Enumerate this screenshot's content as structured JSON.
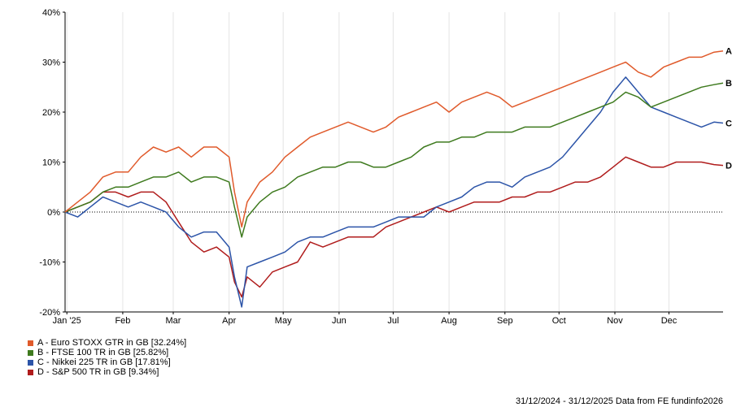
{
  "chart_data": {
    "type": "line",
    "title": "",
    "xlabel": "",
    "ylabel": "",
    "ylim": [
      -20,
      40
    ],
    "y_ticks": [
      -20,
      -10,
      0,
      10,
      20,
      30,
      40
    ],
    "y_tick_labels": [
      "-20%",
      "-10%",
      "0%",
      "10%",
      "20%",
      "30%",
      "40%"
    ],
    "x_range": [
      "2024-12-31",
      "2025-12-31"
    ],
    "x_ticks": [
      {
        "date": "2025-01-01",
        "label": "Jan '25"
      },
      {
        "date": "2025-02-01",
        "label": "Feb"
      },
      {
        "date": "2025-03-01",
        "label": "Mar"
      },
      {
        "date": "2025-04-01",
        "label": "Apr"
      },
      {
        "date": "2025-05-01",
        "label": "May"
      },
      {
        "date": "2025-06-01",
        "label": "Jun"
      },
      {
        "date": "2025-07-01",
        "label": "Jul"
      },
      {
        "date": "2025-08-01",
        "label": "Aug"
      },
      {
        "date": "2025-09-01",
        "label": "Sep"
      },
      {
        "date": "2025-10-01",
        "label": "Oct"
      },
      {
        "date": "2025-11-01",
        "label": "Nov"
      },
      {
        "date": "2025-12-01",
        "label": "Dec"
      }
    ],
    "grid": "vertical",
    "zero_line": true,
    "legend_position": "bottom-left",
    "series": [
      {
        "key": "A",
        "name": "A - Euro STOXX GTR in GB [32.24%]",
        "color": "#e05a2b",
        "points": [
          [
            "2024-12-31",
            0
          ],
          [
            "2025-01-07",
            2
          ],
          [
            "2025-01-14",
            4
          ],
          [
            "2025-01-21",
            7
          ],
          [
            "2025-01-28",
            8
          ],
          [
            "2025-02-04",
            8
          ],
          [
            "2025-02-11",
            11
          ],
          [
            "2025-02-18",
            13
          ],
          [
            "2025-02-25",
            12
          ],
          [
            "2025-03-04",
            13
          ],
          [
            "2025-03-11",
            11
          ],
          [
            "2025-03-18",
            13
          ],
          [
            "2025-03-25",
            13
          ],
          [
            "2025-04-01",
            11
          ],
          [
            "2025-04-04",
            4
          ],
          [
            "2025-04-08",
            -3
          ],
          [
            "2025-04-11",
            2
          ],
          [
            "2025-04-18",
            6
          ],
          [
            "2025-04-25",
            8
          ],
          [
            "2025-05-02",
            11
          ],
          [
            "2025-05-09",
            13
          ],
          [
            "2025-05-16",
            15
          ],
          [
            "2025-05-23",
            16
          ],
          [
            "2025-05-30",
            17
          ],
          [
            "2025-06-06",
            18
          ],
          [
            "2025-06-13",
            17
          ],
          [
            "2025-06-20",
            16
          ],
          [
            "2025-06-27",
            17
          ],
          [
            "2025-07-04",
            19
          ],
          [
            "2025-07-11",
            20
          ],
          [
            "2025-07-18",
            21
          ],
          [
            "2025-07-25",
            22
          ],
          [
            "2025-08-01",
            20
          ],
          [
            "2025-08-08",
            22
          ],
          [
            "2025-08-15",
            23
          ],
          [
            "2025-08-22",
            24
          ],
          [
            "2025-08-29",
            23
          ],
          [
            "2025-09-05",
            21
          ],
          [
            "2025-09-12",
            22
          ],
          [
            "2025-09-19",
            23
          ],
          [
            "2025-09-26",
            24
          ],
          [
            "2025-10-03",
            25
          ],
          [
            "2025-10-10",
            26
          ],
          [
            "2025-10-17",
            27
          ],
          [
            "2025-10-24",
            28
          ],
          [
            "2025-10-31",
            29
          ],
          [
            "2025-11-07",
            30
          ],
          [
            "2025-11-14",
            28
          ],
          [
            "2025-11-21",
            27
          ],
          [
            "2025-11-28",
            29
          ],
          [
            "2025-12-05",
            30
          ],
          [
            "2025-12-12",
            31
          ],
          [
            "2025-12-19",
            31
          ],
          [
            "2025-12-26",
            32
          ],
          [
            "2025-12-31",
            32.24
          ]
        ]
      },
      {
        "key": "B",
        "name": "B - FTSE 100 TR in GB [25.82%]",
        "color": "#3e7a1e",
        "points": [
          [
            "2024-12-31",
            0
          ],
          [
            "2025-01-07",
            1
          ],
          [
            "2025-01-14",
            2
          ],
          [
            "2025-01-21",
            4
          ],
          [
            "2025-01-28",
            5
          ],
          [
            "2025-02-04",
            5
          ],
          [
            "2025-02-11",
            6
          ],
          [
            "2025-02-18",
            7
          ],
          [
            "2025-02-25",
            7
          ],
          [
            "2025-03-04",
            8
          ],
          [
            "2025-03-11",
            6
          ],
          [
            "2025-03-18",
            7
          ],
          [
            "2025-03-25",
            7
          ],
          [
            "2025-04-01",
            6
          ],
          [
            "2025-04-04",
            1
          ],
          [
            "2025-04-08",
            -5
          ],
          [
            "2025-04-11",
            -1
          ],
          [
            "2025-04-18",
            2
          ],
          [
            "2025-04-25",
            4
          ],
          [
            "2025-05-02",
            5
          ],
          [
            "2025-05-09",
            7
          ],
          [
            "2025-05-16",
            8
          ],
          [
            "2025-05-23",
            9
          ],
          [
            "2025-05-30",
            9
          ],
          [
            "2025-06-06",
            10
          ],
          [
            "2025-06-13",
            10
          ],
          [
            "2025-06-20",
            9
          ],
          [
            "2025-06-27",
            9
          ],
          [
            "2025-07-04",
            10
          ],
          [
            "2025-07-11",
            11
          ],
          [
            "2025-07-18",
            13
          ],
          [
            "2025-07-25",
            14
          ],
          [
            "2025-08-01",
            14
          ],
          [
            "2025-08-08",
            15
          ],
          [
            "2025-08-15",
            15
          ],
          [
            "2025-08-22",
            16
          ],
          [
            "2025-08-29",
            16
          ],
          [
            "2025-09-05",
            16
          ],
          [
            "2025-09-12",
            17
          ],
          [
            "2025-09-19",
            17
          ],
          [
            "2025-09-26",
            17
          ],
          [
            "2025-10-03",
            18
          ],
          [
            "2025-10-10",
            19
          ],
          [
            "2025-10-17",
            20
          ],
          [
            "2025-10-24",
            21
          ],
          [
            "2025-10-31",
            22
          ],
          [
            "2025-11-07",
            24
          ],
          [
            "2025-11-14",
            23
          ],
          [
            "2025-11-21",
            21
          ],
          [
            "2025-11-28",
            22
          ],
          [
            "2025-12-05",
            23
          ],
          [
            "2025-12-12",
            24
          ],
          [
            "2025-12-19",
            25
          ],
          [
            "2025-12-26",
            25.5
          ],
          [
            "2025-12-31",
            25.82
          ]
        ]
      },
      {
        "key": "C",
        "name": "C - Nikkei 225 TR in GB [17.81%]",
        "color": "#2c54a8",
        "points": [
          [
            "2024-12-31",
            0
          ],
          [
            "2025-01-07",
            -1
          ],
          [
            "2025-01-14",
            1
          ],
          [
            "2025-01-21",
            3
          ],
          [
            "2025-01-28",
            2
          ],
          [
            "2025-02-04",
            1
          ],
          [
            "2025-02-11",
            2
          ],
          [
            "2025-02-18",
            1
          ],
          [
            "2025-02-25",
            0
          ],
          [
            "2025-03-04",
            -3
          ],
          [
            "2025-03-11",
            -5
          ],
          [
            "2025-03-18",
            -4
          ],
          [
            "2025-03-25",
            -4
          ],
          [
            "2025-04-01",
            -7
          ],
          [
            "2025-04-04",
            -13
          ],
          [
            "2025-04-08",
            -19
          ],
          [
            "2025-04-11",
            -11
          ],
          [
            "2025-04-18",
            -10
          ],
          [
            "2025-04-25",
            -9
          ],
          [
            "2025-05-02",
            -8
          ],
          [
            "2025-05-09",
            -6
          ],
          [
            "2025-05-16",
            -5
          ],
          [
            "2025-05-23",
            -5
          ],
          [
            "2025-05-30",
            -4
          ],
          [
            "2025-06-06",
            -3
          ],
          [
            "2025-06-13",
            -3
          ],
          [
            "2025-06-20",
            -3
          ],
          [
            "2025-06-27",
            -2
          ],
          [
            "2025-07-04",
            -1
          ],
          [
            "2025-07-11",
            -1
          ],
          [
            "2025-07-18",
            -1
          ],
          [
            "2025-07-25",
            1
          ],
          [
            "2025-08-01",
            2
          ],
          [
            "2025-08-08",
            3
          ],
          [
            "2025-08-15",
            5
          ],
          [
            "2025-08-22",
            6
          ],
          [
            "2025-08-29",
            6
          ],
          [
            "2025-09-05",
            5
          ],
          [
            "2025-09-12",
            7
          ],
          [
            "2025-09-19",
            8
          ],
          [
            "2025-09-26",
            9
          ],
          [
            "2025-10-03",
            11
          ],
          [
            "2025-10-10",
            14
          ],
          [
            "2025-10-17",
            17
          ],
          [
            "2025-10-24",
            20
          ],
          [
            "2025-10-31",
            24
          ],
          [
            "2025-11-07",
            27
          ],
          [
            "2025-11-14",
            24
          ],
          [
            "2025-11-21",
            21
          ],
          [
            "2025-11-28",
            20
          ],
          [
            "2025-12-05",
            19
          ],
          [
            "2025-12-12",
            18
          ],
          [
            "2025-12-19",
            17
          ],
          [
            "2025-12-26",
            18
          ],
          [
            "2025-12-31",
            17.81
          ]
        ]
      },
      {
        "key": "D",
        "name": "D - S&P 500 TR in GB [9.34%]",
        "color": "#b01c1c",
        "points": [
          [
            "2024-12-31",
            0
          ],
          [
            "2025-01-07",
            1
          ],
          [
            "2025-01-14",
            2
          ],
          [
            "2025-01-21",
            4
          ],
          [
            "2025-01-28",
            4
          ],
          [
            "2025-02-04",
            3
          ],
          [
            "2025-02-11",
            4
          ],
          [
            "2025-02-18",
            4
          ],
          [
            "2025-02-25",
            2
          ],
          [
            "2025-03-04",
            -2
          ],
          [
            "2025-03-11",
            -6
          ],
          [
            "2025-03-18",
            -8
          ],
          [
            "2025-03-25",
            -7
          ],
          [
            "2025-04-01",
            -9
          ],
          [
            "2025-04-04",
            -14
          ],
          [
            "2025-04-08",
            -17
          ],
          [
            "2025-04-11",
            -13
          ],
          [
            "2025-04-18",
            -15
          ],
          [
            "2025-04-25",
            -12
          ],
          [
            "2025-05-02",
            -11
          ],
          [
            "2025-05-09",
            -10
          ],
          [
            "2025-05-16",
            -6
          ],
          [
            "2025-05-23",
            -7
          ],
          [
            "2025-05-30",
            -6
          ],
          [
            "2025-06-06",
            -5
          ],
          [
            "2025-06-13",
            -5
          ],
          [
            "2025-06-20",
            -5
          ],
          [
            "2025-06-27",
            -3
          ],
          [
            "2025-07-04",
            -2
          ],
          [
            "2025-07-11",
            -1
          ],
          [
            "2025-07-18",
            0
          ],
          [
            "2025-07-25",
            1
          ],
          [
            "2025-08-01",
            0
          ],
          [
            "2025-08-08",
            1
          ],
          [
            "2025-08-15",
            2
          ],
          [
            "2025-08-22",
            2
          ],
          [
            "2025-08-29",
            2
          ],
          [
            "2025-09-05",
            3
          ],
          [
            "2025-09-12",
            3
          ],
          [
            "2025-09-19",
            4
          ],
          [
            "2025-09-26",
            4
          ],
          [
            "2025-10-03",
            5
          ],
          [
            "2025-10-10",
            6
          ],
          [
            "2025-10-17",
            6
          ],
          [
            "2025-10-24",
            7
          ],
          [
            "2025-10-31",
            9
          ],
          [
            "2025-11-07",
            11
          ],
          [
            "2025-11-14",
            10
          ],
          [
            "2025-11-21",
            9
          ],
          [
            "2025-11-28",
            9
          ],
          [
            "2025-12-05",
            10
          ],
          [
            "2025-12-12",
            10
          ],
          [
            "2025-12-19",
            10
          ],
          [
            "2025-12-26",
            9.5
          ],
          [
            "2025-12-31",
            9.34
          ]
        ]
      }
    ]
  },
  "footer_text": "31/12/2024 - 31/12/2025 Data from FE fundinfo2026"
}
